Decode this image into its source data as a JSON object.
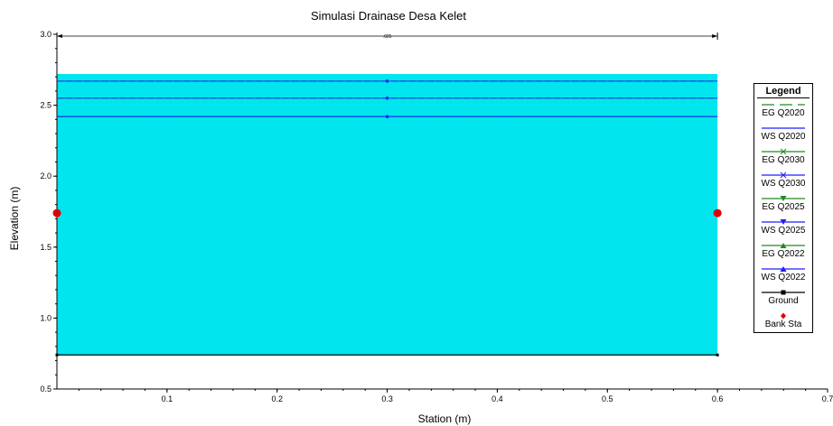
{
  "chart_data": {
    "type": "area",
    "title": "Simulasi Drainase Desa Kelet",
    "xlabel": "Station (m)",
    "ylabel": "Elevation (m)",
    "xlim": [
      0,
      0.7
    ],
    "ylim": [
      0.5,
      3.0
    ],
    "x_ticks": [
      0.1,
      0.2,
      0.3,
      0.4,
      0.5,
      0.6,
      0.7
    ],
    "x_tick_labels": [
      "0.1",
      "0.2",
      "0.3",
      "0.4",
      "0.5",
      "0.6",
      "0.7"
    ],
    "y_ticks": [
      0.5,
      1.0,
      1.5,
      2.0,
      2.5,
      3.0
    ],
    "y_tick_labels": [
      "0.5",
      "1.0",
      "1.5",
      "2.0",
      "2.5",
      "3.0"
    ],
    "dimension_label": ".025",
    "water_fill": {
      "x": [
        0,
        0.6
      ],
      "top": 2.72,
      "bottom": 0.74,
      "color": "#00e5ee"
    },
    "ground": {
      "x": [
        0,
        0.6
      ],
      "y": [
        0.74,
        0.74
      ],
      "color": "#000000"
    },
    "bank_stations": [
      {
        "x": 0,
        "y": 1.74
      },
      {
        "x": 0.6,
        "y": 1.74
      }
    ],
    "series": [
      {
        "name": "EG Q2020",
        "style": "dash",
        "color": "#3a7a3a",
        "y": 2.67
      },
      {
        "name": "WS Q2020",
        "style": "solid",
        "color": "#1f1fff",
        "y": 2.67
      },
      {
        "name": "EG Q2030",
        "style": "dash",
        "color": "#3a7a3a",
        "y": 2.55
      },
      {
        "name": "WS Q2030",
        "style": "solid",
        "color": "#1f1fff",
        "y": 2.55
      },
      {
        "name": "EG Q2025",
        "style": "dash",
        "color": "#3a7a3a",
        "y": 2.42
      },
      {
        "name": "WS Q2025",
        "style": "solid",
        "color": "#1f1fff",
        "y": 2.42
      },
      {
        "name": "EG Q2022",
        "style": "dash",
        "color": "#3a7a3a",
        "y": 2.42
      },
      {
        "name": "WS Q2022",
        "style": "solid",
        "color": "#1f1fff",
        "y": 2.42
      }
    ],
    "legend": {
      "title": "Legend",
      "position": "right",
      "entries": [
        {
          "label": "EG Q2020",
          "color": "#228b22",
          "line": "dash",
          "marker": ""
        },
        {
          "label": "WS Q2020",
          "color": "#1f1fff",
          "line": "solid",
          "marker": ""
        },
        {
          "label": "EG Q2030",
          "color": "#228b22",
          "line": "solid",
          "marker": "x"
        },
        {
          "label": "WS Q2030",
          "color": "#1f1fff",
          "line": "solid",
          "marker": "x"
        },
        {
          "label": "EG Q2025",
          "color": "#228b22",
          "line": "solid",
          "marker": "triangle-down"
        },
        {
          "label": "WS Q2025",
          "color": "#1f1fff",
          "line": "solid",
          "marker": "triangle-down"
        },
        {
          "label": "EG Q2022",
          "color": "#228b22",
          "line": "solid",
          "marker": "triangle-up"
        },
        {
          "label": "WS Q2022",
          "color": "#1f1fff",
          "line": "solid",
          "marker": "triangle-up"
        },
        {
          "label": "Ground",
          "color": "#000000",
          "line": "solid",
          "marker": "square"
        },
        {
          "label": "Bank Sta",
          "color": "#e00000",
          "line": "none",
          "marker": "circle"
        }
      ]
    }
  }
}
